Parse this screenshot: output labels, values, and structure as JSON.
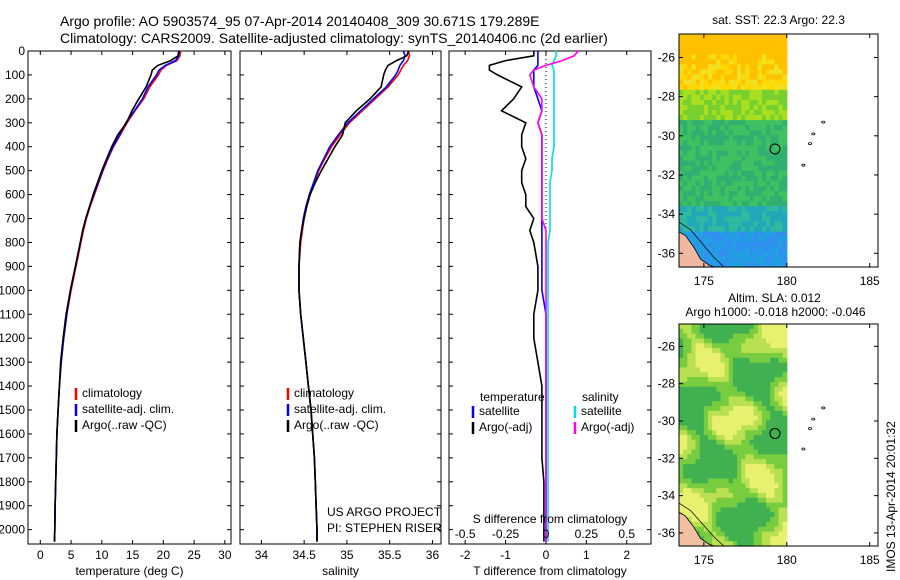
{
  "header": {
    "line1": "Argo profile: AO 5903574_95 07-Apr-2014 20140408_309 30.671S 179.289E",
    "line2": "Climatology: CARS2009. Satellite-adjusted climatology: synTS_20140406.nc (2d earlier)"
  },
  "footer_stamp": "IMOS 13-Apr-2014 20:01:32",
  "colors": {
    "climatology": "#ff0000",
    "satellite": "#0000ff",
    "argo": "#000000",
    "sal_satellite": "#00e0e0",
    "sal_argo": "#ff00ff"
  },
  "chart_data": [
    {
      "type": "line",
      "name": "temperature-profile",
      "xlabel": "temperature (deg C)",
      "xlim": [
        -2,
        31
      ],
      "ylim": [
        0,
        2060
      ],
      "xticks": [
        0,
        5,
        10,
        15,
        20,
        25,
        30
      ],
      "yticks": [
        0,
        100,
        200,
        300,
        400,
        500,
        600,
        700,
        800,
        900,
        1000,
        1100,
        1200,
        1300,
        1400,
        1500,
        1600,
        1700,
        1800,
        1900,
        2000
      ],
      "depth": [
        0,
        20,
        40,
        60,
        80,
        100,
        150,
        200,
        250,
        300,
        350,
        400,
        450,
        500,
        550,
        600,
        650,
        700,
        750,
        800,
        900,
        1000,
        1100,
        1200,
        1300,
        1400,
        1500,
        1600,
        1700,
        1800,
        1900,
        2000,
        2050
      ],
      "series": [
        {
          "name": "climatology",
          "values": [
            22.8,
            22.7,
            22.2,
            20.5,
            19.6,
            19.2,
            17.8,
            16.8,
            15.4,
            14.1,
            13.0,
            11.9,
            11.0,
            10.2,
            9.5,
            8.8,
            8.1,
            7.5,
            7.0,
            6.6,
            5.8,
            5.0,
            4.3,
            3.8,
            3.4,
            3.1,
            2.9,
            2.7,
            2.6,
            2.5,
            2.4,
            2.35,
            2.3
          ]
        },
        {
          "name": "satellite-adj. clim.",
          "values": [
            22.6,
            22.5,
            22.0,
            20.3,
            19.3,
            18.9,
            17.5,
            16.6,
            15.3,
            13.9,
            12.9,
            11.8,
            10.9,
            10.1,
            9.4,
            8.7,
            8.0,
            7.4,
            6.9,
            6.5,
            5.7,
            4.9,
            4.3,
            3.8,
            3.4,
            3.1,
            2.9,
            2.7,
            2.6,
            2.5,
            2.4,
            2.35,
            2.3
          ]
        },
        {
          "name": "Argo(..raw -QC)",
          "values": [
            22.5,
            22.4,
            21.2,
            19.1,
            18.2,
            18.0,
            17.2,
            16.0,
            14.9,
            14.0,
            12.6,
            11.6,
            10.8,
            10.0,
            9.3,
            8.6,
            8.0,
            7.4,
            6.9,
            6.5,
            5.7,
            4.9,
            4.2,
            3.7,
            3.3,
            3.1,
            2.9,
            2.7,
            2.6,
            2.5,
            2.4,
            2.35,
            2.3
          ]
        }
      ],
      "legend": [
        "climatology",
        "satellite-adj. clim.",
        "Argo(..raw -QC)"
      ]
    },
    {
      "type": "line",
      "name": "salinity-profile",
      "xlabel": "salinity",
      "xlim": [
        33.75,
        36.1
      ],
      "xticks": [
        34,
        34.5,
        35,
        35.5,
        36
      ],
      "xticklabels": [
        "34",
        "34.5",
        "35",
        "35.5",
        "36"
      ],
      "depth": [
        0,
        20,
        40,
        60,
        80,
        100,
        150,
        200,
        250,
        300,
        350,
        400,
        450,
        500,
        550,
        600,
        650,
        700,
        750,
        800,
        900,
        1000,
        1100,
        1200,
        1300,
        1400,
        1500,
        1600,
        1700,
        1800,
        1900,
        2000,
        2050
      ],
      "series": [
        {
          "name": "climatology",
          "values": [
            35.72,
            35.73,
            35.71,
            35.66,
            35.63,
            35.6,
            35.48,
            35.33,
            35.18,
            35.03,
            34.92,
            34.82,
            34.74,
            34.67,
            34.62,
            34.57,
            34.53,
            34.5,
            34.48,
            34.46,
            34.44,
            34.44,
            34.46,
            34.49,
            34.52,
            34.55,
            34.58,
            34.6,
            34.62,
            34.63,
            34.64,
            34.65,
            34.65
          ]
        },
        {
          "name": "satellite-adj. clim.",
          "values": [
            35.66,
            35.68,
            35.66,
            35.62,
            35.6,
            35.57,
            35.46,
            35.31,
            35.16,
            35.01,
            34.9,
            34.8,
            34.73,
            34.66,
            34.61,
            34.56,
            34.52,
            34.49,
            34.47,
            34.45,
            34.44,
            34.44,
            34.46,
            34.49,
            34.52,
            34.55,
            34.58,
            34.6,
            34.62,
            34.63,
            34.64,
            34.65,
            34.65
          ]
        },
        {
          "name": "Argo(..raw -QC)",
          "values": [
            35.72,
            35.7,
            35.58,
            35.48,
            35.45,
            35.43,
            35.4,
            35.27,
            35.11,
            34.98,
            34.95,
            34.86,
            34.78,
            34.7,
            34.63,
            34.57,
            34.53,
            34.5,
            34.47,
            34.45,
            34.44,
            34.44,
            34.46,
            34.49,
            34.52,
            34.55,
            34.58,
            34.6,
            34.62,
            34.63,
            34.64,
            34.65,
            34.65
          ]
        }
      ],
      "legend": [
        "climatology",
        "satellite-adj. clim.",
        "Argo(..raw -QC)"
      ],
      "annotation": [
        "US ARGO PROJECT",
        "PI: STEPHEN RISER"
      ]
    },
    {
      "type": "line",
      "name": "difference-profile",
      "xlabel": "T difference from climatology",
      "top_xlabel": "S difference from climatology",
      "xlim": [
        -2.4,
        2.6
      ],
      "xticks": [
        -2,
        -1,
        0,
        1,
        2
      ],
      "top_ticklabels": [
        [
          "-0.5",
          -2
        ],
        [
          "-0.25",
          -1
        ],
        [
          "0",
          0
        ],
        [
          "0.25",
          1
        ],
        [
          "0.5",
          2
        ]
      ],
      "depth": [
        0,
        20,
        40,
        60,
        80,
        100,
        150,
        200,
        250,
        300,
        350,
        400,
        450,
        500,
        550,
        600,
        650,
        700,
        750,
        800,
        900,
        1000,
        1100,
        1200,
        1300,
        1400,
        1500,
        1600,
        1700,
        1800,
        1900,
        2000,
        2050
      ],
      "series": [
        {
          "name": "temperature satellite",
          "group": "temperature",
          "values": [
            -0.2,
            -0.2,
            -0.2,
            -0.2,
            -0.3,
            -0.3,
            -0.3,
            -0.2,
            -0.1,
            -0.2,
            -0.1,
            -0.1,
            -0.1,
            -0.1,
            -0.1,
            -0.1,
            -0.1,
            -0.1,
            -0.1,
            -0.1,
            -0.1,
            -0.1,
            0,
            0,
            0,
            0,
            0,
            0,
            0,
            0,
            0,
            0,
            0
          ]
        },
        {
          "name": "temperature Argo(-adj)",
          "group": "temperature",
          "values": [
            -0.3,
            -0.3,
            -1.0,
            -1.4,
            -1.4,
            -1.2,
            -0.6,
            -0.8,
            -1.1,
            -0.5,
            -0.6,
            -0.6,
            -0.5,
            -0.6,
            -0.6,
            -0.5,
            -0.5,
            -0.3,
            -0.4,
            -0.3,
            -0.2,
            -0.2,
            -0.3,
            -0.3,
            -0.2,
            -0.1,
            -0.1,
            -0.1,
            -0.1,
            -0.05,
            -0.05,
            -0.05,
            -0.05
          ]
        },
        {
          "name": "salinity satellite",
          "group": "salinity",
          "values": [
            0.25,
            0.25,
            0.2,
            0.15,
            0.2,
            0.2,
            0.2,
            0.2,
            0.2,
            0.2,
            0.2,
            0.2,
            0.15,
            0.15,
            0.1,
            0.1,
            0.1,
            0.1,
            0.1,
            0.05,
            0.05,
            0.05,
            0.05,
            0.05,
            0.05,
            0.05,
            0.05,
            0.05,
            0.05,
            0.05,
            0.05,
            0.05,
            0.05
          ]
        },
        {
          "name": "salinity Argo(-adj)",
          "group": "salinity",
          "values": [
            0.8,
            0.7,
            0.4,
            0.0,
            -0.3,
            -0.4,
            -0.3,
            -0.1,
            -0.1,
            -0.2,
            -0.1,
            -0.1,
            -0.1,
            -0.1,
            -0.1,
            -0.1,
            -0.1,
            -0.1,
            0,
            0,
            0,
            0,
            0,
            0,
            0,
            0,
            0,
            0,
            0,
            0,
            0,
            0,
            0
          ]
        }
      ],
      "legend_titles": [
        "temperature",
        "salinity"
      ],
      "legend": [
        "satellite",
        "Argo(-adj)",
        "satellite",
        "Argo(-adj)"
      ]
    },
    {
      "type": "heatmap",
      "name": "sst-map",
      "title": "sat. SST: 22.3 Argo: 22.3",
      "xlim": [
        173.5,
        185.5
      ],
      "ylim": [
        -36.7,
        -24.8
      ],
      "xticks": [
        175,
        180,
        185
      ],
      "yticks": [
        -26,
        -28,
        -30,
        -32,
        -34,
        -36
      ],
      "data_xrange": [
        173.5,
        180
      ],
      "data_yrange": [
        -36.7,
        -24.8
      ],
      "argo_position": [
        179.289,
        -30.671
      ]
    },
    {
      "type": "heatmap",
      "name": "sla-map",
      "title": "Altim. SLA: 0.012",
      "subtitle": "Argo h1000: -0.018 h2000: -0.046",
      "xlim": [
        173.5,
        185.5
      ],
      "ylim": [
        -36.7,
        -24.8
      ],
      "xticks": [
        175,
        180,
        185
      ],
      "yticks": [
        -26,
        -28,
        -30,
        -32,
        -34,
        -36
      ],
      "data_xrange": [
        173.5,
        180
      ],
      "data_yrange": [
        -36.7,
        -24.8
      ],
      "argo_position": [
        179.289,
        -30.671
      ]
    }
  ]
}
